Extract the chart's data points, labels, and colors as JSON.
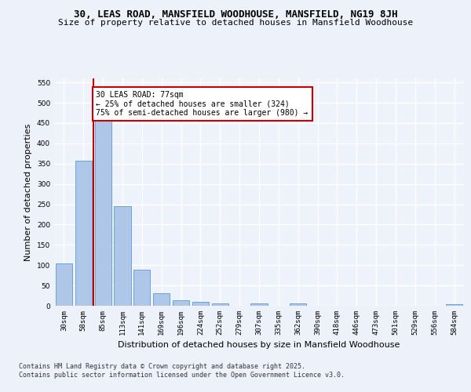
{
  "title": "30, LEAS ROAD, MANSFIELD WOODHOUSE, MANSFIELD, NG19 8JH",
  "subtitle": "Size of property relative to detached houses in Mansfield Woodhouse",
  "xlabel": "Distribution of detached houses by size in Mansfield Woodhouse",
  "ylabel": "Number of detached properties",
  "categories": [
    "30sqm",
    "58sqm",
    "85sqm",
    "113sqm",
    "141sqm",
    "169sqm",
    "196sqm",
    "224sqm",
    "252sqm",
    "279sqm",
    "307sqm",
    "335sqm",
    "362sqm",
    "390sqm",
    "418sqm",
    "446sqm",
    "473sqm",
    "501sqm",
    "529sqm",
    "556sqm",
    "584sqm"
  ],
  "values": [
    105,
    357,
    456,
    245,
    88,
    31,
    13,
    9,
    5,
    0,
    5,
    0,
    5,
    0,
    0,
    0,
    0,
    0,
    0,
    0,
    4
  ],
  "bar_color": "#aec6e8",
  "bar_edge_color": "#5b9bd5",
  "highlight_color": "#cc0000",
  "annotation_title": "30 LEAS ROAD: 77sqm",
  "annotation_line1": "← 25% of detached houses are smaller (324)",
  "annotation_line2": "75% of semi-detached houses are larger (980) →",
  "ylim": [
    0,
    560
  ],
  "yticks": [
    0,
    50,
    100,
    150,
    200,
    250,
    300,
    350,
    400,
    450,
    500,
    550
  ],
  "footer_line1": "Contains HM Land Registry data © Crown copyright and database right 2025.",
  "footer_line2": "Contains public sector information licensed under the Open Government Licence v3.0.",
  "bg_color": "#edf2fa",
  "plot_bg_color": "#eef3fb",
  "grid_color": "#ffffff",
  "title_fontsize": 9,
  "subtitle_fontsize": 8,
  "axis_label_fontsize": 8,
  "tick_fontsize": 6.5,
  "annotation_fontsize": 7,
  "footer_fontsize": 6
}
